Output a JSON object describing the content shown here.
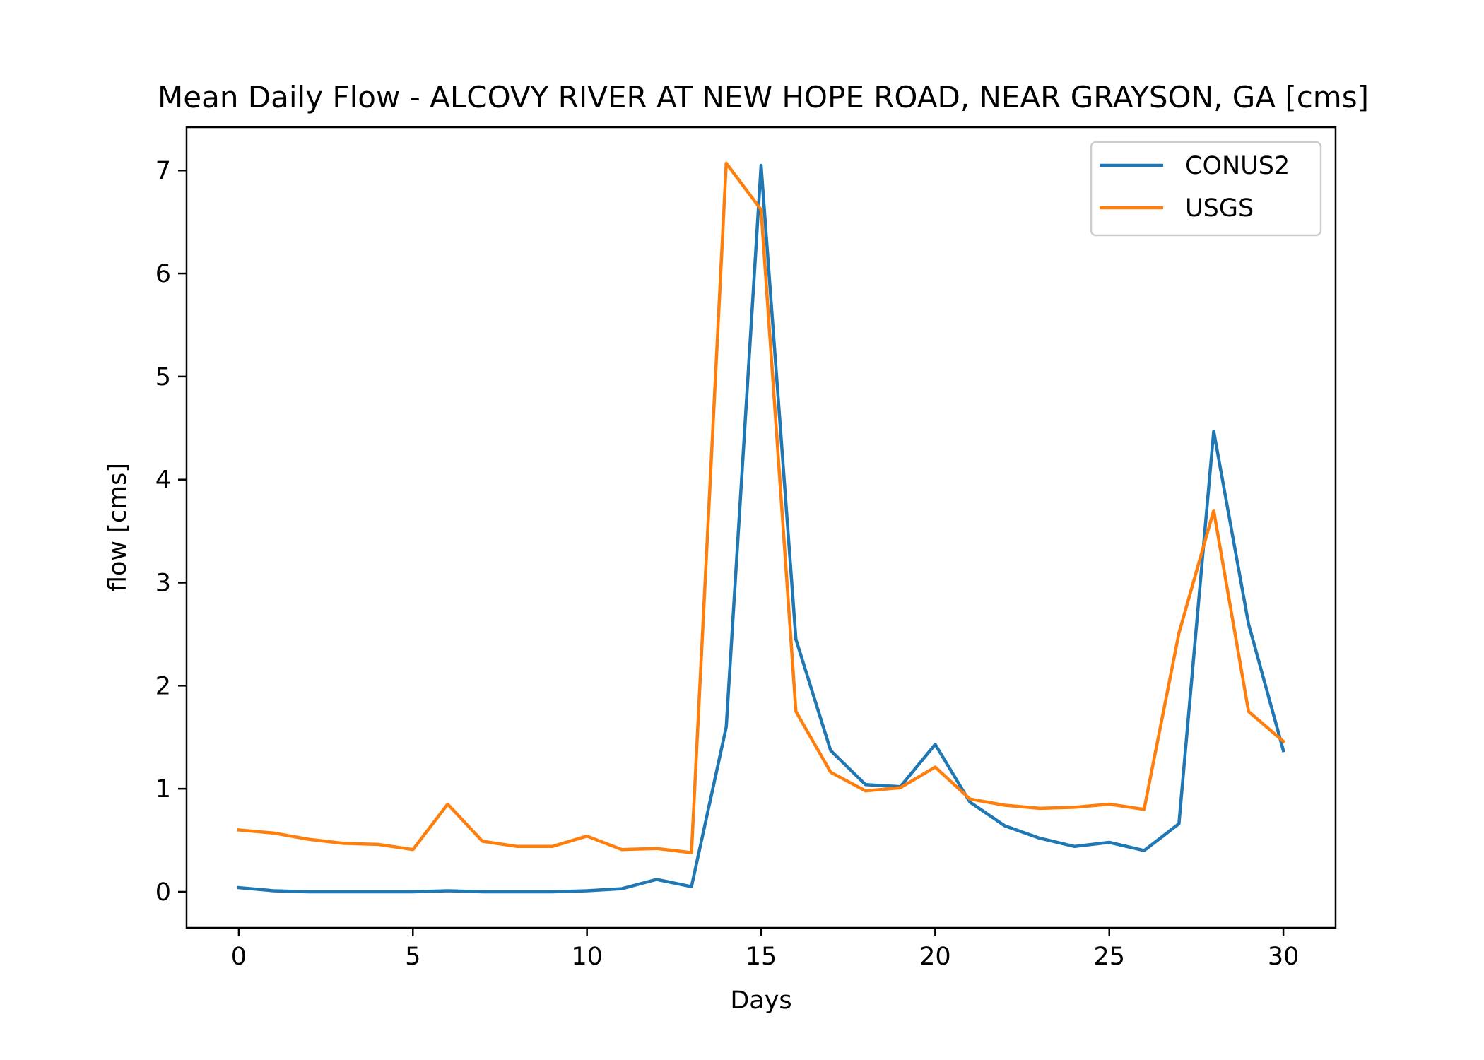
{
  "chart_data": {
    "type": "line",
    "title": "Mean Daily Flow - ALCOVY RIVER AT NEW HOPE ROAD, NEAR GRAYSON, GA [cms]",
    "xlabel": "Days",
    "ylabel": "flow [cms]",
    "xlim": [
      -1.5,
      31.5
    ],
    "ylim": [
      -0.35,
      7.42
    ],
    "x_ticks": [
      0,
      5,
      10,
      15,
      20,
      25,
      30
    ],
    "y_ticks": [
      0,
      1,
      2,
      3,
      4,
      5,
      6,
      7
    ],
    "grid": false,
    "legend_position": "top-right",
    "x": [
      0,
      1,
      2,
      3,
      4,
      5,
      6,
      7,
      8,
      9,
      10,
      11,
      12,
      13,
      14,
      15,
      16,
      17,
      18,
      19,
      20,
      21,
      22,
      23,
      24,
      25,
      26,
      27,
      28,
      29,
      30
    ],
    "series": [
      {
        "name": "CONUS2",
        "color": "#1f77b4",
        "values": [
          0.04,
          0.01,
          0.0,
          0.0,
          0.0,
          0.0,
          0.01,
          0.0,
          0.0,
          0.0,
          0.01,
          0.03,
          0.12,
          0.05,
          1.6,
          7.05,
          2.45,
          1.37,
          1.04,
          1.02,
          1.43,
          0.87,
          0.64,
          0.52,
          0.44,
          0.48,
          0.4,
          0.66,
          4.47,
          2.6,
          1.37
        ]
      },
      {
        "name": "USGS",
        "color": "#ff7f0e",
        "values": [
          0.6,
          0.57,
          0.51,
          0.47,
          0.46,
          0.41,
          0.85,
          0.49,
          0.44,
          0.44,
          0.54,
          0.41,
          0.42,
          0.38,
          7.07,
          6.62,
          1.75,
          1.16,
          0.98,
          1.01,
          1.21,
          0.9,
          0.84,
          0.81,
          0.82,
          0.85,
          0.8,
          2.51,
          3.7,
          1.75,
          1.46
        ]
      }
    ]
  }
}
